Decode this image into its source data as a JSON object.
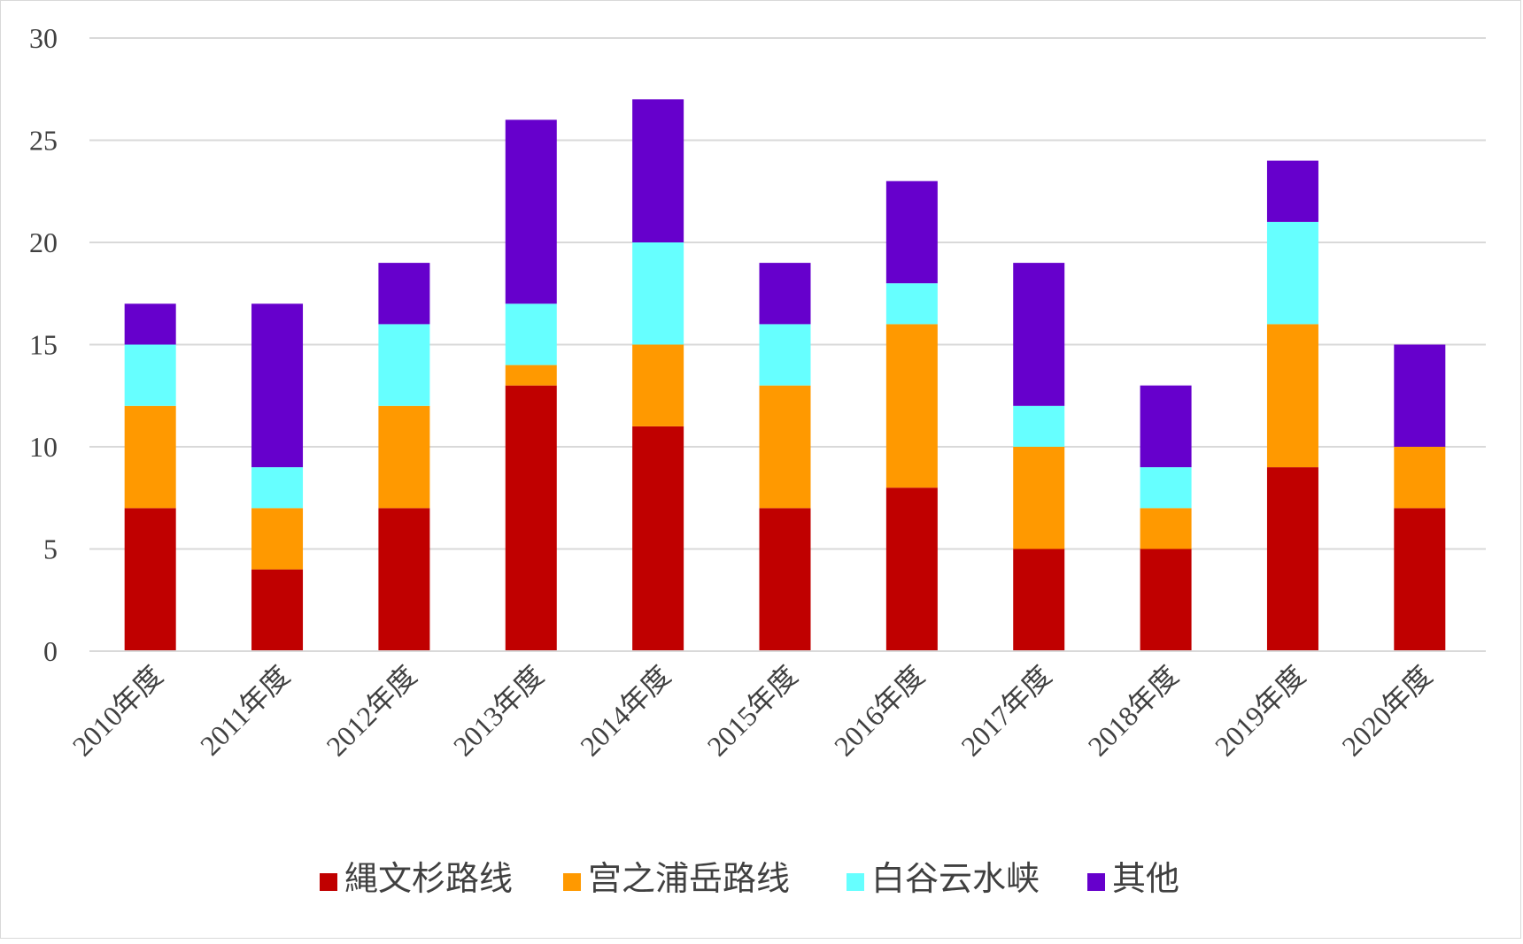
{
  "chart_data": {
    "type": "bar",
    "stacked": true,
    "categories": [
      "2010年度",
      "2011年度",
      "2012年度",
      "2013年度",
      "2014年度",
      "2015年度",
      "2016年度",
      "2017年度",
      "2018年度",
      "2019年度",
      "2020年度"
    ],
    "series": [
      {
        "name": "縄文杉路线",
        "color": "#c00000",
        "values": [
          7,
          4,
          7,
          13,
          11,
          7,
          8,
          5,
          5,
          9,
          7
        ]
      },
      {
        "name": "宫之浦岳路线",
        "color": "#ff9900",
        "values": [
          5,
          3,
          5,
          1,
          4,
          6,
          8,
          5,
          2,
          7,
          3
        ]
      },
      {
        "name": "白谷云水峡",
        "color": "#66ffff",
        "values": [
          3,
          2,
          4,
          3,
          5,
          3,
          2,
          2,
          2,
          5,
          0
        ]
      },
      {
        "name": "其他",
        "color": "#6600cc",
        "values": [
          2,
          8,
          3,
          9,
          7,
          3,
          5,
          7,
          4,
          3,
          5
        ]
      }
    ],
    "ylim": [
      0,
      30
    ],
    "yticks": [
      0,
      5,
      10,
      15,
      20,
      25,
      30
    ],
    "grid": true,
    "legend": "bottom",
    "title": "",
    "xlabel": "",
    "ylabel": ""
  }
}
